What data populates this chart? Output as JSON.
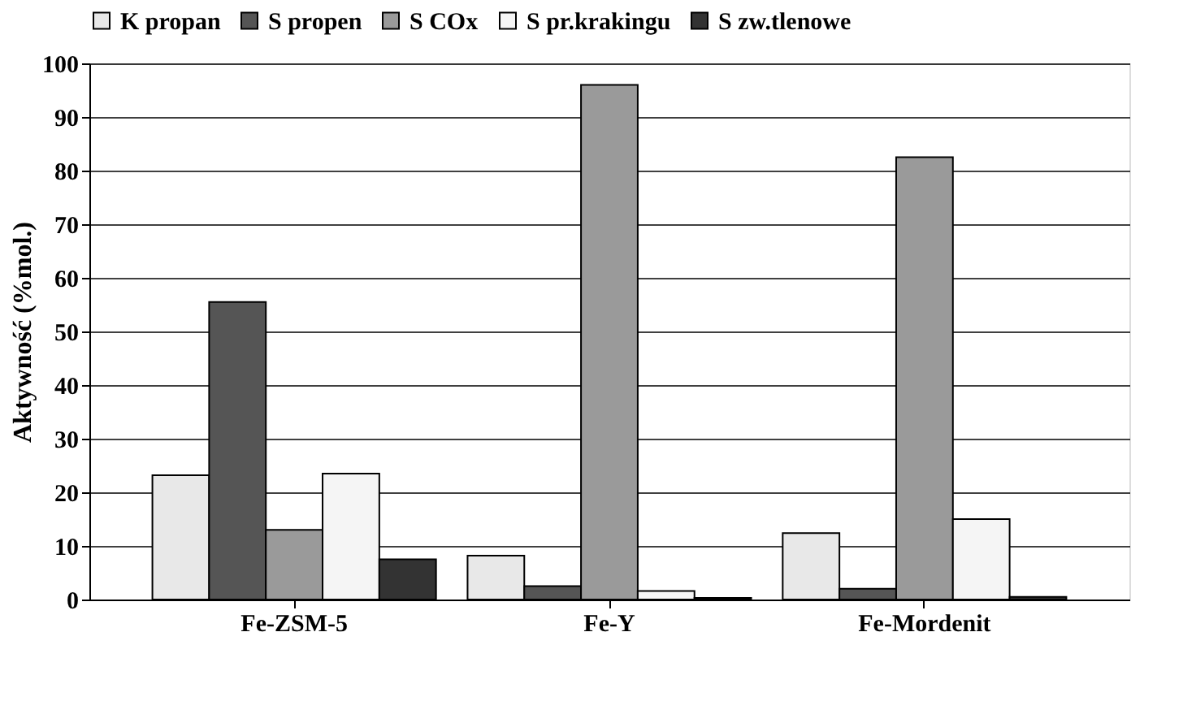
{
  "chart_data": {
    "type": "bar",
    "ylabel": "Aktywność (%mol.)",
    "categories": [
      "Fe-ZSM-5",
      "Fe-Y",
      "Fe-Mordenit"
    ],
    "series": [
      {
        "name": "K propan",
        "color": "#e8e8e8",
        "values": [
          23.2,
          8.2,
          12.4
        ]
      },
      {
        "name": "S propen",
        "color": "#555555",
        "values": [
          55.5,
          2.5,
          2.0
        ]
      },
      {
        "name": "S COx",
        "color": "#9a9a9a",
        "values": [
          13.0,
          96.0,
          82.5
        ]
      },
      {
        "name": "S pr.krakingu",
        "color": "#f5f5f5",
        "values": [
          23.5,
          1.6,
          15.0
        ]
      },
      {
        "name": "S zw.tlenowe",
        "color": "#333333",
        "values": [
          7.5,
          0.3,
          0.5
        ]
      }
    ],
    "ylim": [
      0,
      100
    ],
    "yticks": [
      0,
      10,
      20,
      30,
      40,
      50,
      60,
      70,
      80,
      90,
      100
    ],
    "grid": "y",
    "legend": "top"
  }
}
